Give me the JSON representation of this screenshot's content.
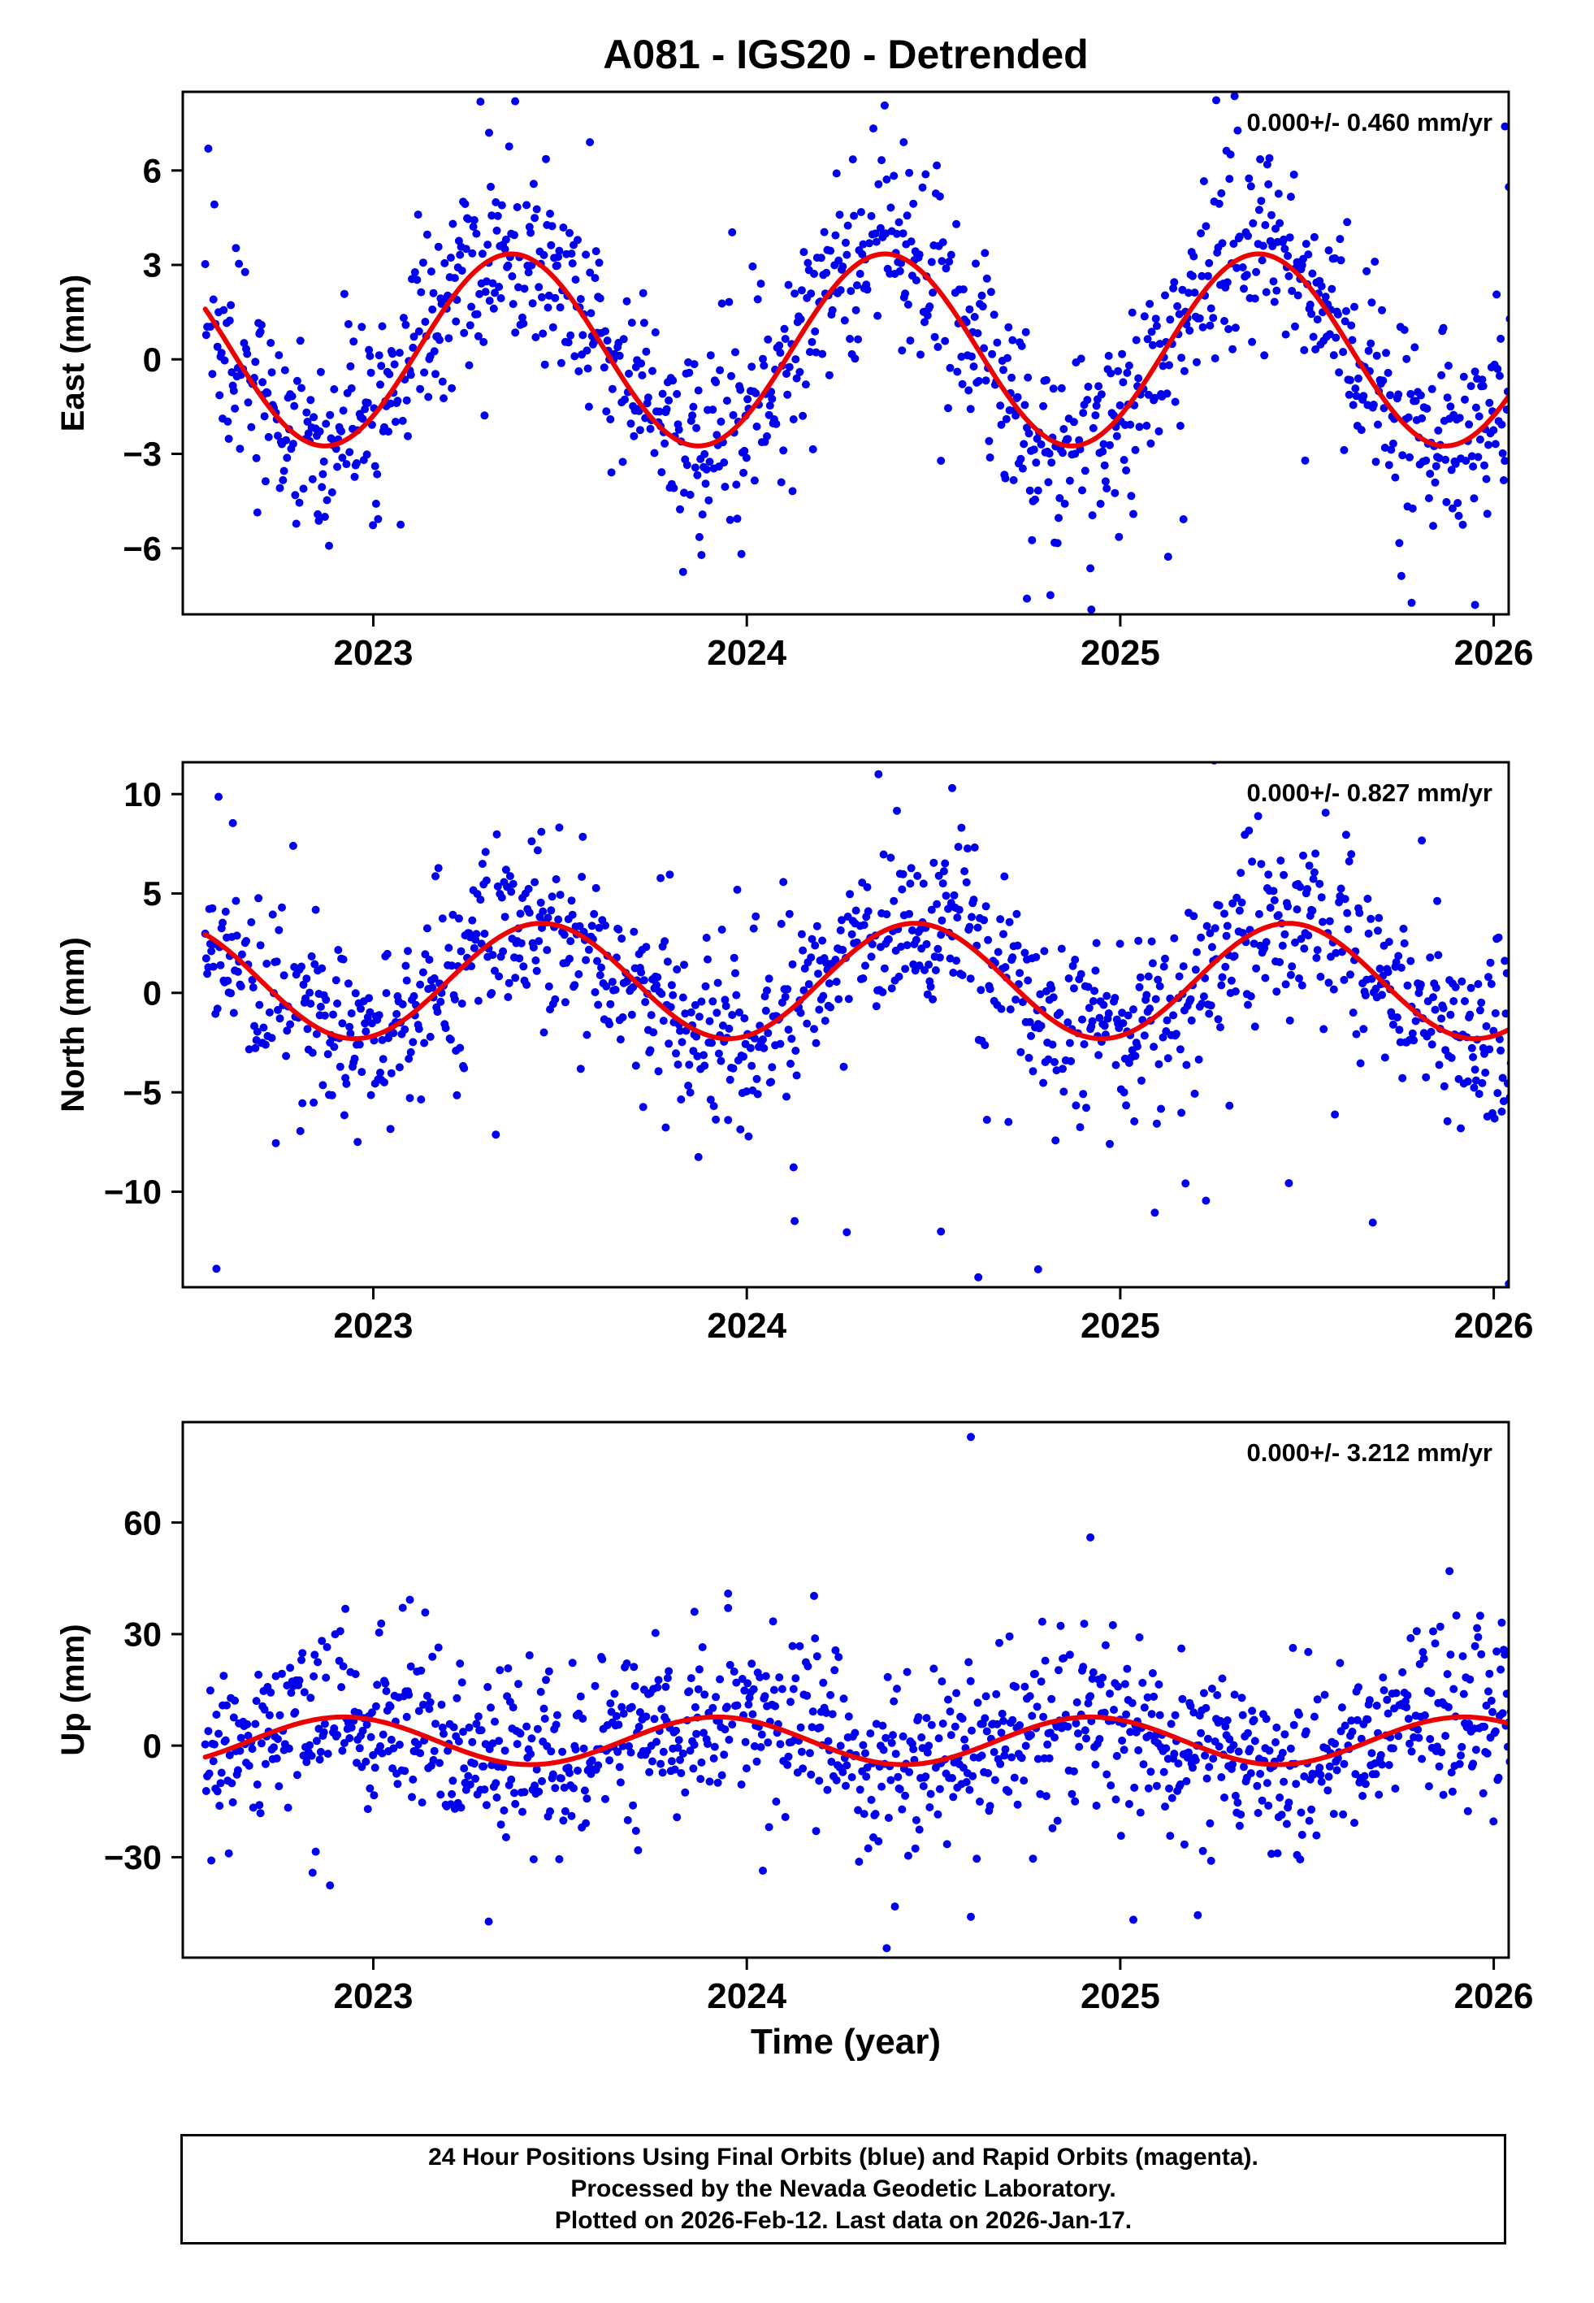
{
  "chart_data": {
    "type": "scatter",
    "title": "A081 - IGS20 - Detrended",
    "xlabel": "Time (year)",
    "x_range": [
      2022.49,
      2026.04
    ],
    "x_ticks": [
      2023,
      2024,
      2025,
      2026
    ],
    "data_x_start": 2022.55,
    "data_x_end": 2026.046,
    "points_per_year": 365,
    "gap_fraction": 0.08,
    "point_color": "#0000ee",
    "curve_color": "#ee0000",
    "grid": false,
    "legend_position": "none",
    "panels": [
      {
        "ylabel": "East (mm)",
        "ylim": [
          -8.1,
          8.5
        ],
        "yticks": [
          -6,
          -3,
          0,
          3,
          6
        ],
        "annotation": "0.000+/- 0.460 mm/yr",
        "curve": {
          "mean": 0.3,
          "amplitude": 3.05,
          "peak_fraction": 0.37,
          "period_years": 1
        },
        "noise": {
          "sigma": 1.45,
          "outlier_fraction": 0.1,
          "outlier_scale": 2.3,
          "neg_tail_fraction": 0,
          "neg_tail_scale": 0
        },
        "outlier_points": [
          [
            2023.38,
            8.2
          ],
          [
            2023.31,
            7.2
          ],
          [
            2023.58,
            6.9
          ],
          [
            2024.42,
            6.9
          ],
          [
            2024.75,
            -7.6
          ],
          [
            2025.95,
            -7.8
          ],
          [
            2026.03,
            7.4
          ]
        ],
        "seed": 101
      },
      {
        "ylabel": "North (mm)",
        "ylim": [
          -14.8,
          11.6
        ],
        "yticks": [
          -10,
          -5,
          0,
          5,
          10
        ],
        "annotation": "0.000+/- 0.827 mm/yr",
        "curve": {
          "mean": 0.6,
          "amplitude": 2.9,
          "peak_fraction": 0.45,
          "period_years": 1
        },
        "noise": {
          "sigma": 2.1,
          "outlier_fraction": 0.1,
          "outlier_scale": 2.2,
          "neg_tail_fraction": 0.015,
          "neg_tail_scale": 4.5
        },
        "outlier_points": [
          [
            2024.55,
            10.3
          ],
          [
            2024.62,
            -14.3
          ],
          [
            2024.78,
            -13.9
          ],
          [
            2024.52,
            -12.0
          ],
          [
            2023.45,
            8.1
          ]
        ],
        "seed": 202
      },
      {
        "ylabel": "Up (mm)",
        "ylim": [
          -57,
          87
        ],
        "yticks": [
          -30,
          0,
          30,
          60
        ],
        "annotation": "0.000+/- 3.212 mm/yr",
        "curve": {
          "mean": 1.3,
          "amplitude": 6.4,
          "peak_fraction": 0.92,
          "period_years": 1
        },
        "noise": {
          "sigma": 10.5,
          "outlier_fraction": 0.1,
          "outlier_scale": 2.0,
          "neg_tail_fraction": 0.01,
          "neg_tail_scale": 1.8
        },
        "outlier_points": [
          [
            2024.6,
            83
          ],
          [
            2024.92,
            56
          ],
          [
            2024.6,
            -46
          ],
          [
            2023.95,
            37
          ],
          [
            2025.9,
            35
          ],
          [
            2023.86,
            36
          ]
        ],
        "seed": 303
      }
    ]
  },
  "footer": {
    "lines": [
      "24 Hour Positions Using Final Orbits (blue) and Rapid Orbits (magenta).",
      "Processed by the Nevada Geodetic Laboratory.",
      "Plotted on 2026-Feb-12. Last data on 2026-Jan-17."
    ]
  }
}
